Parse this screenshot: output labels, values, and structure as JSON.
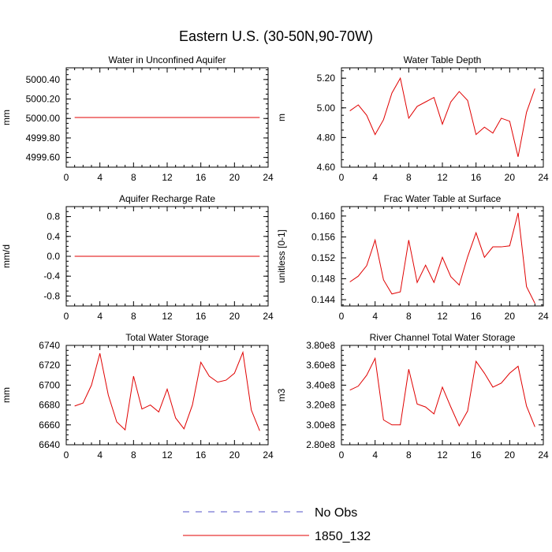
{
  "title": "Eastern U.S. (30-50N,90-70W)",
  "legend": [
    {
      "label": "No Obs",
      "color": "#5050c8",
      "style": "dashed"
    },
    {
      "label": "1850_132",
      "color": "#e00000",
      "style": "solid"
    }
  ],
  "chart_data": [
    {
      "type": "line",
      "title": "Water in Unconfined Aquifer",
      "ylabel": "mm",
      "xlim": [
        0,
        24
      ],
      "ylim": [
        4999.5,
        5000.52
      ],
      "xticks": [
        0,
        4,
        8,
        12,
        16,
        20,
        24
      ],
      "yticks": [
        4999.6,
        4999.8,
        5000.0,
        5000.2,
        5000.4
      ],
      "ytick_labels": [
        "4999.60",
        "4999.80",
        "5000.00",
        "5000.20",
        "5000.40"
      ],
      "series": [
        {
          "name": "1850_132",
          "color": "#e00000",
          "x": [
            1,
            2,
            3,
            4,
            5,
            6,
            7,
            8,
            9,
            10,
            11,
            12,
            13,
            14,
            15,
            16,
            17,
            18,
            19,
            20,
            21,
            22,
            23
          ],
          "y": [
            5000.01,
            5000.01,
            5000.01,
            5000.01,
            5000.01,
            5000.01,
            5000.01,
            5000.01,
            5000.01,
            5000.01,
            5000.01,
            5000.01,
            5000.01,
            5000.01,
            5000.01,
            5000.01,
            5000.01,
            5000.01,
            5000.01,
            5000.01,
            5000.01,
            5000.01,
            5000.01
          ]
        }
      ]
    },
    {
      "type": "line",
      "title": "Water Table Depth",
      "ylabel": "m",
      "xlim": [
        0,
        24
      ],
      "ylim": [
        4.6,
        5.27
      ],
      "xticks": [
        0,
        4,
        8,
        12,
        16,
        20,
        24
      ],
      "yticks": [
        4.6,
        4.8,
        5.0,
        5.2
      ],
      "ytick_labels": [
        "4.60",
        "4.80",
        "5.00",
        "5.20"
      ],
      "series": [
        {
          "name": "1850_132",
          "color": "#e00000",
          "x": [
            1,
            2,
            3,
            4,
            5,
            6,
            7,
            8,
            9,
            10,
            11,
            12,
            13,
            14,
            15,
            16,
            17,
            18,
            19,
            20,
            21,
            22,
            23
          ],
          "y": [
            4.98,
            5.02,
            4.95,
            4.82,
            4.92,
            5.1,
            5.2,
            4.93,
            5.01,
            5.04,
            5.07,
            4.89,
            5.04,
            5.11,
            5.05,
            4.82,
            4.87,
            4.83,
            4.93,
            4.91,
            4.67,
            4.97,
            5.13
          ]
        }
      ]
    },
    {
      "type": "line",
      "title": "Aquifer Recharge Rate",
      "ylabel": "mm/d",
      "xlim": [
        0,
        24
      ],
      "ylim": [
        -1.0,
        1.0
      ],
      "xticks": [
        0,
        4,
        8,
        12,
        16,
        20,
        24
      ],
      "yticks": [
        -0.8,
        -0.4,
        0.0,
        0.4,
        0.8
      ],
      "ytick_labels": [
        "-0.8",
        "-0.4",
        "0.0",
        "0.4",
        "0.8"
      ],
      "series": [
        {
          "name": "1850_132",
          "color": "#e00000",
          "x": [
            1,
            2,
            3,
            4,
            5,
            6,
            7,
            8,
            9,
            10,
            11,
            12,
            13,
            14,
            15,
            16,
            17,
            18,
            19,
            20,
            21,
            22,
            23
          ],
          "y": [
            0,
            0,
            0,
            0,
            0,
            0,
            0,
            0,
            0,
            0,
            0,
            0,
            0,
            0,
            0,
            0,
            0,
            0,
            0,
            0,
            0,
            0,
            0
          ]
        }
      ]
    },
    {
      "type": "line",
      "title": "Frac Water Table at Surface",
      "ylabel": "unitless [0-1]",
      "xlim": [
        0,
        24
      ],
      "ylim": [
        0.1428,
        0.1618
      ],
      "xticks": [
        0,
        4,
        8,
        12,
        16,
        20,
        24
      ],
      "yticks": [
        0.144,
        0.148,
        0.152,
        0.156,
        0.16
      ],
      "ytick_labels": [
        "0.144",
        "0.148",
        "0.152",
        "0.156",
        "0.160"
      ],
      "series": [
        {
          "name": "1850_132",
          "color": "#e00000",
          "x": [
            1,
            2,
            3,
            4,
            5,
            6,
            7,
            8,
            9,
            10,
            11,
            12,
            13,
            14,
            15,
            16,
            17,
            18,
            19,
            20,
            21,
            22,
            23
          ],
          "y": [
            0.1474,
            0.1485,
            0.1505,
            0.1554,
            0.1478,
            0.1451,
            0.1455,
            0.1554,
            0.1473,
            0.1506,
            0.1473,
            0.1521,
            0.1484,
            0.1468,
            0.1522,
            0.1568,
            0.1521,
            0.1541,
            0.1541,
            0.1543,
            0.1606,
            0.1465,
            0.1433
          ]
        }
      ]
    },
    {
      "type": "line",
      "title": "Total Water Storage",
      "ylabel": "mm",
      "xlim": [
        0,
        24
      ],
      "ylim": [
        6640,
        6740
      ],
      "xticks": [
        0,
        4,
        8,
        12,
        16,
        20,
        24
      ],
      "yticks": [
        6640,
        6660,
        6680,
        6700,
        6720,
        6740
      ],
      "ytick_labels": [
        "6640",
        "6660",
        "6680",
        "6700",
        "6720",
        "6740"
      ],
      "series": [
        {
          "name": "1850_132",
          "color": "#e00000",
          "x": [
            1,
            2,
            3,
            4,
            5,
            6,
            7,
            8,
            9,
            10,
            11,
            12,
            13,
            14,
            15,
            16,
            17,
            18,
            19,
            20,
            21,
            22,
            23
          ],
          "y": [
            6679,
            6682,
            6700,
            6732,
            6690,
            6663,
            6655,
            6709,
            6676,
            6680,
            6673,
            6696,
            6667,
            6656,
            6680,
            6723,
            6709,
            6703,
            6705,
            6712,
            6733,
            6675,
            6654
          ]
        }
      ]
    },
    {
      "type": "line",
      "title": "River Channel Total Water Storage",
      "ylabel": "m3",
      "xlim": [
        0,
        24
      ],
      "ylim": [
        280000000,
        380000000
      ],
      "xticks": [
        0,
        4,
        8,
        12,
        16,
        20,
        24
      ],
      "yticks": [
        280000000,
        300000000,
        320000000,
        340000000,
        360000000,
        380000000
      ],
      "ytick_labels": [
        "2.80e8",
        "3.00e8",
        "3.20e8",
        "3.40e8",
        "3.60e8",
        "3.80e8"
      ],
      "series": [
        {
          "name": "1850_132",
          "color": "#e00000",
          "x": [
            1,
            2,
            3,
            4,
            5,
            6,
            7,
            8,
            9,
            10,
            11,
            12,
            13,
            14,
            15,
            16,
            17,
            18,
            19,
            20,
            21,
            22,
            23
          ],
          "y": [
            335000000,
            339000000,
            350000000,
            367000000,
            305000000,
            300000000,
            300000000,
            356000000,
            321000000,
            318000000,
            311000000,
            338000000,
            318000000,
            299000000,
            314000000,
            364000000,
            352000000,
            338000000,
            342000000,
            352000000,
            359000000,
            319000000,
            298000000
          ]
        }
      ]
    }
  ]
}
